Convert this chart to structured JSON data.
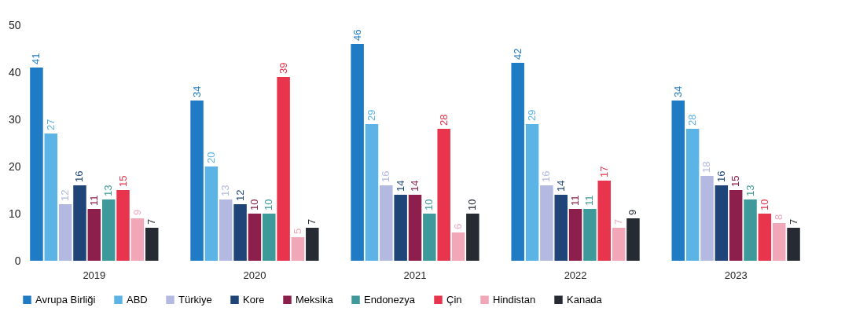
{
  "chart_data": {
    "type": "bar",
    "categories": [
      "2019",
      "2020",
      "2021",
      "2022",
      "2023"
    ],
    "series": [
      {
        "name": "Avrupa Birliği",
        "color": "#1f7cc4",
        "values": [
          41,
          34,
          46,
          42,
          34
        ]
      },
      {
        "name": "ABD",
        "color": "#5bb3e6",
        "values": [
          27,
          20,
          29,
          29,
          28
        ]
      },
      {
        "name": "Türkiye",
        "color": "#b3b9e0",
        "values": [
          12,
          13,
          16,
          16,
          18
        ]
      },
      {
        "name": "Kore",
        "color": "#1e4478",
        "values": [
          16,
          12,
          14,
          14,
          16
        ]
      },
      {
        "name": "Meksika",
        "color": "#8c1f4c",
        "values": [
          11,
          10,
          14,
          11,
          15
        ]
      },
      {
        "name": "Endonezya",
        "color": "#3e9a9a",
        "values": [
          13,
          10,
          10,
          11,
          13
        ]
      },
      {
        "name": "Çin",
        "color": "#e8344c",
        "values": [
          15,
          39,
          28,
          17,
          10
        ]
      },
      {
        "name": "Hindistan",
        "color": "#f2a7b9",
        "values": [
          9,
          5,
          6,
          7,
          8
        ]
      },
      {
        "name": "Kanada",
        "color": "#262b33",
        "values": [
          7,
          7,
          10,
          9,
          7
        ]
      }
    ],
    "ylim": [
      0,
      50
    ],
    "yticks": [
      0,
      10,
      20,
      30,
      40,
      50
    ],
    "grid": false,
    "legend": "bottom",
    "data_labels": true
  }
}
